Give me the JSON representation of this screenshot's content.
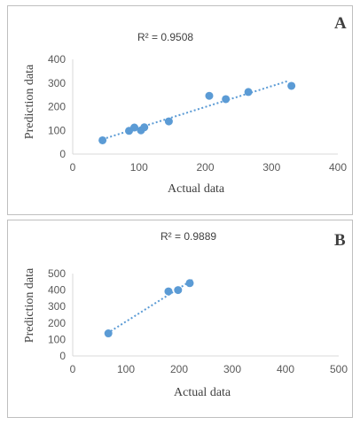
{
  "chart_data": [
    {
      "type": "scatter",
      "panel_label": "A",
      "annotation": "R² = 0.9508",
      "xlabel": "Actual data",
      "ylabel": "Prediction data",
      "xlim": [
        0,
        400
      ],
      "ylim": [
        0,
        400
      ],
      "xticks": [
        "0",
        "100",
        "200",
        "300",
        "400"
      ],
      "yticks": [
        "0",
        "100",
        "200",
        "300",
        "400"
      ],
      "trendline": "linear (dotted)",
      "trend_x": [
        45,
        325
      ],
      "grid": false,
      "points": [
        {
          "x": 45,
          "y": 58
        },
        {
          "x": 85,
          "y": 98
        },
        {
          "x": 93,
          "y": 112
        },
        {
          "x": 103,
          "y": 100
        },
        {
          "x": 108,
          "y": 113
        },
        {
          "x": 145,
          "y": 138
        },
        {
          "x": 206,
          "y": 246
        },
        {
          "x": 231,
          "y": 232
        },
        {
          "x": 265,
          "y": 262
        },
        {
          "x": 330,
          "y": 288
        }
      ]
    },
    {
      "type": "scatter",
      "panel_label": "B",
      "annotation": "R² = 0.9889",
      "xlabel": "Actual data",
      "ylabel": "Prediction data",
      "xlim": [
        0,
        500
      ],
      "ylim": [
        0,
        500
      ],
      "xticks": [
        "0",
        "100",
        "200",
        "300",
        "400",
        "500"
      ],
      "yticks": [
        "0",
        "100",
        "200",
        "300",
        "400",
        "500"
      ],
      "trendline": "linear (dotted)",
      "trend_x": [
        65,
        225
      ],
      "grid": false,
      "points": [
        {
          "x": 67,
          "y": 137
        },
        {
          "x": 180,
          "y": 392
        },
        {
          "x": 198,
          "y": 400
        },
        {
          "x": 220,
          "y": 442
        }
      ]
    }
  ],
  "colors": {
    "marker": "#5b9bd5",
    "trendline": "#5b9bd5",
    "axis": "#d9d9d9",
    "text": "#595959",
    "border": "#bfbfbf"
  }
}
